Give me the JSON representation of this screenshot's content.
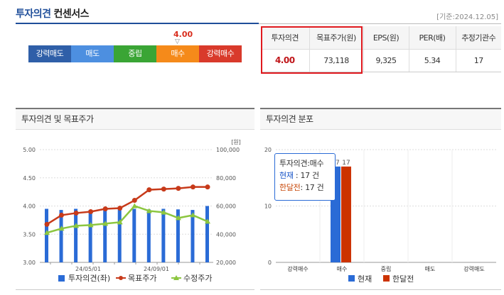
{
  "header": {
    "title_part1": "투자의견",
    "title_part2": "컨센서스",
    "base_date": "[기준:2024.12.05]"
  },
  "rating": {
    "value": "4.00",
    "marker": "▽",
    "scale": [
      {
        "label": "강력매도",
        "color": "#2f5fa8"
      },
      {
        "label": "매도",
        "color": "#4d8fe0"
      },
      {
        "label": "중립",
        "color": "#3aa535"
      },
      {
        "label": "매수",
        "color": "#f58a1a"
      },
      {
        "label": "강력매수",
        "color": "#d93a2b"
      }
    ]
  },
  "summary": {
    "headers": [
      "투자의견",
      "목표주가(원)",
      "EPS(원)",
      "PER(배)",
      "추정기관수"
    ],
    "values": [
      "4.00",
      "73,118",
      "9,325",
      "5.34",
      "17"
    ]
  },
  "panels": {
    "left_title": "투자의견 및 목표주가",
    "right_title": "투자의견 분포"
  },
  "colors": {
    "opinion_bar": "#2a6bd6",
    "target_price": "#c73a1a",
    "stock_price": "#8cc63f",
    "current": "#2a6bd6",
    "month_ago": "#cc3300"
  },
  "chart_data": [
    {
      "type": "line",
      "title": "",
      "unit_label": "[원]",
      "x_ticks": [
        "24/05/01",
        "24/09/01"
      ],
      "left_axis": {
        "ticks": [
          "5.00",
          "4.50",
          "4.00",
          "3.50",
          "3.00"
        ],
        "range": [
          3.0,
          5.0
        ]
      },
      "right_axis": {
        "ticks": [
          "100,000",
          "80,000",
          "60,000",
          "40,000",
          "20,000"
        ],
        "range": [
          20000,
          100000
        ]
      },
      "legend": [
        "투자의견(좌)",
        "목표주가",
        "수정주가"
      ],
      "series": [
        {
          "name": "투자의견(좌)",
          "kind": "bar",
          "axis": "left",
          "values": [
            3.95,
            3.93,
            3.95,
            3.93,
            3.95,
            3.94,
            3.95,
            3.94,
            3.95,
            3.94,
            3.93,
            4.0
          ]
        },
        {
          "name": "목표주가",
          "kind": "line",
          "axis": "right",
          "values": [
            47000,
            53500,
            55000,
            56000,
            58000,
            58500,
            64000,
            71500,
            72000,
            72500,
            73500,
            73500
          ]
        },
        {
          "name": "수정주가",
          "kind": "line",
          "axis": "right",
          "values": [
            41000,
            44000,
            46000,
            46500,
            47500,
            48500,
            60000,
            56500,
            55500,
            51500,
            53500,
            49000
          ]
        }
      ]
    },
    {
      "type": "bar",
      "title": "",
      "categories": [
        "강력매수",
        "매수",
        "중립",
        "매도",
        "강력매도"
      ],
      "y_ticks": [
        "20",
        "10",
        "0"
      ],
      "ylim": [
        0,
        20
      ],
      "legend": [
        "현재",
        "한달전"
      ],
      "series": [
        {
          "name": "현재",
          "values": [
            0,
            17,
            0,
            0,
            0
          ]
        },
        {
          "name": "한달전",
          "values": [
            0,
            17,
            0,
            0,
            0
          ]
        }
      ],
      "data_labels": [
        "17",
        "17"
      ],
      "tooltip": {
        "title": "투자의견:매수",
        "row1_label": "현재",
        "row1_value": ": 17 건",
        "row2_label": "한달전",
        "row2_value": ": 17 건"
      }
    }
  ]
}
